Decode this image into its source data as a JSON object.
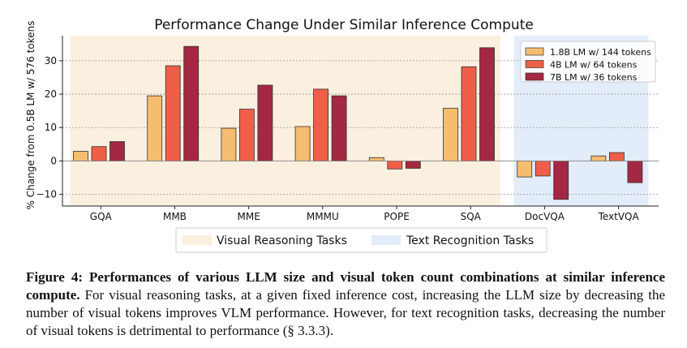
{
  "chart_data": {
    "type": "bar",
    "title": "Performance Change Under Similar Inference Compute",
    "xlabel": "",
    "ylabel": "% Change from 0.5B LM w/ 576 tokens",
    "categories": [
      "GQA",
      "MMB",
      "MME",
      "MMMU",
      "POPE",
      "SQA",
      "DocVQA",
      "TextVQA"
    ],
    "series": [
      {
        "name": "1.8B LM w/ 144 tokens",
        "color": "#f6bd6f",
        "values": [
          2.9,
          19.5,
          9.8,
          10.3,
          1.0,
          15.8,
          -4.8,
          1.5
        ]
      },
      {
        "name": "4B LM w/ 64 tokens",
        "color": "#ef5f48",
        "values": [
          4.3,
          28.5,
          15.5,
          21.5,
          -2.4,
          28.2,
          -4.5,
          2.5
        ]
      },
      {
        "name": "7B LM w/ 36 tokens",
        "color": "#a42843",
        "values": [
          5.8,
          34.3,
          22.7,
          19.5,
          -2.2,
          33.9,
          -11.5,
          -6.5
        ]
      }
    ],
    "ylim": [
      -13.5,
      37.5
    ],
    "yticks": [
      -10,
      0,
      10,
      20,
      30
    ],
    "grid": true,
    "legend_position": "top-right",
    "regions": [
      {
        "label": "Visual Reasoning Tasks",
        "color": "#fbefdf",
        "categories": [
          "GQA",
          "MMB",
          "MME",
          "MMMU",
          "POPE",
          "SQA"
        ]
      },
      {
        "label": "Text Recognition Tasks",
        "color": "#e3ecf9",
        "categories": [
          "DocVQA",
          "TextVQA"
        ]
      }
    ]
  },
  "caption": {
    "label": "Figure 4:",
    "bold": "Performances of various LLM size and visual token count combinations at similar inference compute.",
    "text": "For visual reasoning tasks, at a given fixed inference cost, increasing the LLM size by decreasing the number of visual tokens improves VLM performance.  However, for text recognition tasks, decreasing the number of visual tokens is detrimental to performance (§ 3.3.3)."
  }
}
